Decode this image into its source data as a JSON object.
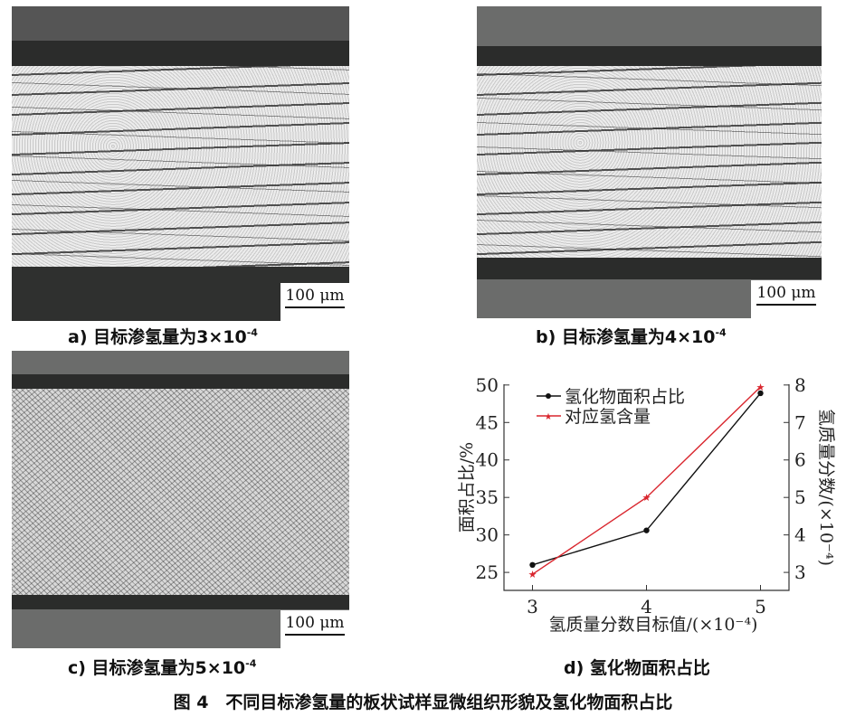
{
  "panels": [
    {
      "label": "a) 目标渗氢量为3×10",
      "exp": "-4",
      "scale_bar": "100 μm"
    },
    {
      "label": "b) 目标渗氢量为4×10",
      "exp": "-4",
      "scale_bar": "100 μm"
    },
    {
      "label": "c) 目标渗氢量为5×10",
      "exp": "-4",
      "scale_bar": "100 μm"
    },
    {
      "label": "d) 氢化物面积占比"
    }
  ],
  "figure_caption": "图 4　不同目标渗氢量的板状试样显微组织形貌及氢化物面积占比",
  "chart_data": {
    "type": "line",
    "x": [
      3,
      4,
      5
    ],
    "xticks": [
      "3",
      "4",
      "5"
    ],
    "xlabel": "氢质量分数目标值/(×10⁻⁴)",
    "ylabel": "面积占比/%",
    "ylabel_right": "氢质量分数/(×10⁻⁴)",
    "yticks": [
      25,
      30,
      35,
      40,
      45,
      50
    ],
    "yticks_right": [
      3,
      4,
      5,
      6,
      7,
      8
    ],
    "ylim": [
      22.6,
      50.1
    ],
    "ylim_right": [
      2.52,
      8.02
    ],
    "legend_position": "top-left",
    "series": [
      {
        "name": "氢化物面积占比",
        "axis": "left",
        "values": [
          26.0,
          30.6,
          48.9
        ],
        "color": "#111111",
        "marker": "circle"
      },
      {
        "name": "对应氢含量",
        "axis": "right",
        "values": [
          2.95,
          5.0,
          7.95
        ],
        "color": "#d9262e",
        "marker": "star"
      }
    ]
  }
}
